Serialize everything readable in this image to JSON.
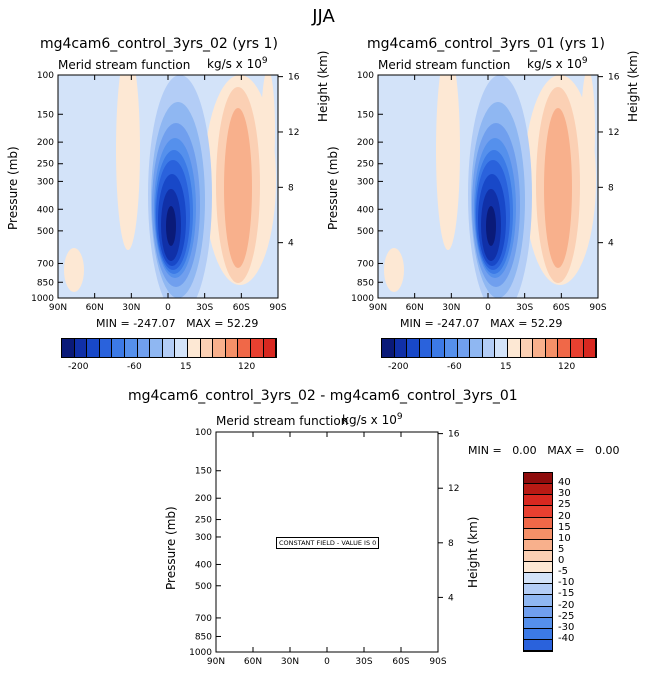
{
  "page_title": "JJA",
  "colors": {
    "neg": [
      "#0a1a78",
      "#1030a8",
      "#1848c8",
      "#2a62dc",
      "#3c7ae6",
      "#5590ec",
      "#709fee",
      "#8fb7f2",
      "#b3cdf6",
      "#d3e3f9"
    ],
    "pos": [
      "#fde8d4",
      "#fbd0b4",
      "#f8b08c",
      "#f59068",
      "#f06848",
      "#e84030",
      "#d82820",
      "#b81a14",
      "#8e0c0c"
    ]
  },
  "chart_data": [
    {
      "id": "panel-1",
      "type": "contour",
      "title": "mg4cam6_control_3yrs_02 (yrs 1)",
      "left_label": "Merid stream function",
      "units_label": "kg/s x 10",
      "units_exp": "9",
      "ylabel": "Pressure (mb)",
      "ylabel_right": "Height (km)",
      "x_ticks": [
        "90N",
        "60N",
        "30N",
        "0",
        "30S",
        "60S",
        "90S"
      ],
      "y_ticks": [
        "100",
        "150",
        "200",
        "250",
        "300",
        "400",
        "500",
        "700",
        "850",
        "1000"
      ],
      "y_ticks_right": [
        "16",
        "12",
        "8",
        "4"
      ],
      "ylim": [
        100,
        1000
      ],
      "stats": {
        "min_label": "MIN =",
        "min": "-247.07",
        "max_label": "MAX =",
        "max": "52.29"
      },
      "colorbar": {
        "orientation": "horizontal",
        "labels": [
          "-200",
          "-60",
          "15",
          "120"
        ]
      }
    },
    {
      "id": "panel-2",
      "type": "contour",
      "title": "mg4cam6_control_3yrs_01 (yrs 1)",
      "left_label": "Merid stream function",
      "units_label": "kg/s x 10",
      "units_exp": "9",
      "ylabel": "Pressure (mb)",
      "ylabel_right": "Height (km)",
      "x_ticks": [
        "90N",
        "60N",
        "30N",
        "0",
        "30S",
        "60S",
        "90S"
      ],
      "y_ticks": [
        "100",
        "150",
        "200",
        "250",
        "300",
        "400",
        "500",
        "700",
        "850",
        "1000"
      ],
      "y_ticks_right": [
        "16",
        "12",
        "8",
        "4"
      ],
      "ylim": [
        100,
        1000
      ],
      "stats": {
        "min_label": "MIN =",
        "min": "-247.07",
        "max_label": "MAX =",
        "max": "52.29"
      },
      "colorbar": {
        "orientation": "horizontal",
        "labels": [
          "-200",
          "-60",
          "15",
          "120"
        ]
      }
    },
    {
      "id": "panel-diff",
      "type": "contour",
      "title": "mg4cam6_control_3yrs_02 - mg4cam6_control_3yrs_01",
      "left_label": "Merid stream function",
      "units_label": "kg/s x 10",
      "units_exp": "9",
      "ylabel": "Pressure (mb)",
      "ylabel_right": "Height (km)",
      "x_ticks": [
        "90N",
        "60N",
        "30N",
        "0",
        "30S",
        "60S",
        "90S"
      ],
      "y_ticks": [
        "100",
        "150",
        "200",
        "250",
        "300",
        "400",
        "500",
        "700",
        "850",
        "1000"
      ],
      "y_ticks_right": [
        "16",
        "12",
        "8",
        "4"
      ],
      "ylim": [
        100,
        1000
      ],
      "annotation": "CONSTANT FIELD - VALUE IS 0",
      "stats": {
        "min_label": "MIN =",
        "min": "0.00",
        "max_label": "MAX =",
        "max": "0.00"
      },
      "colorbar": {
        "orientation": "vertical",
        "labels": [
          "40",
          "30",
          "25",
          "20",
          "15",
          "10",
          "5",
          "0",
          "-5",
          "-10",
          "-15",
          "-20",
          "-25",
          "-30",
          "-40"
        ]
      }
    }
  ]
}
